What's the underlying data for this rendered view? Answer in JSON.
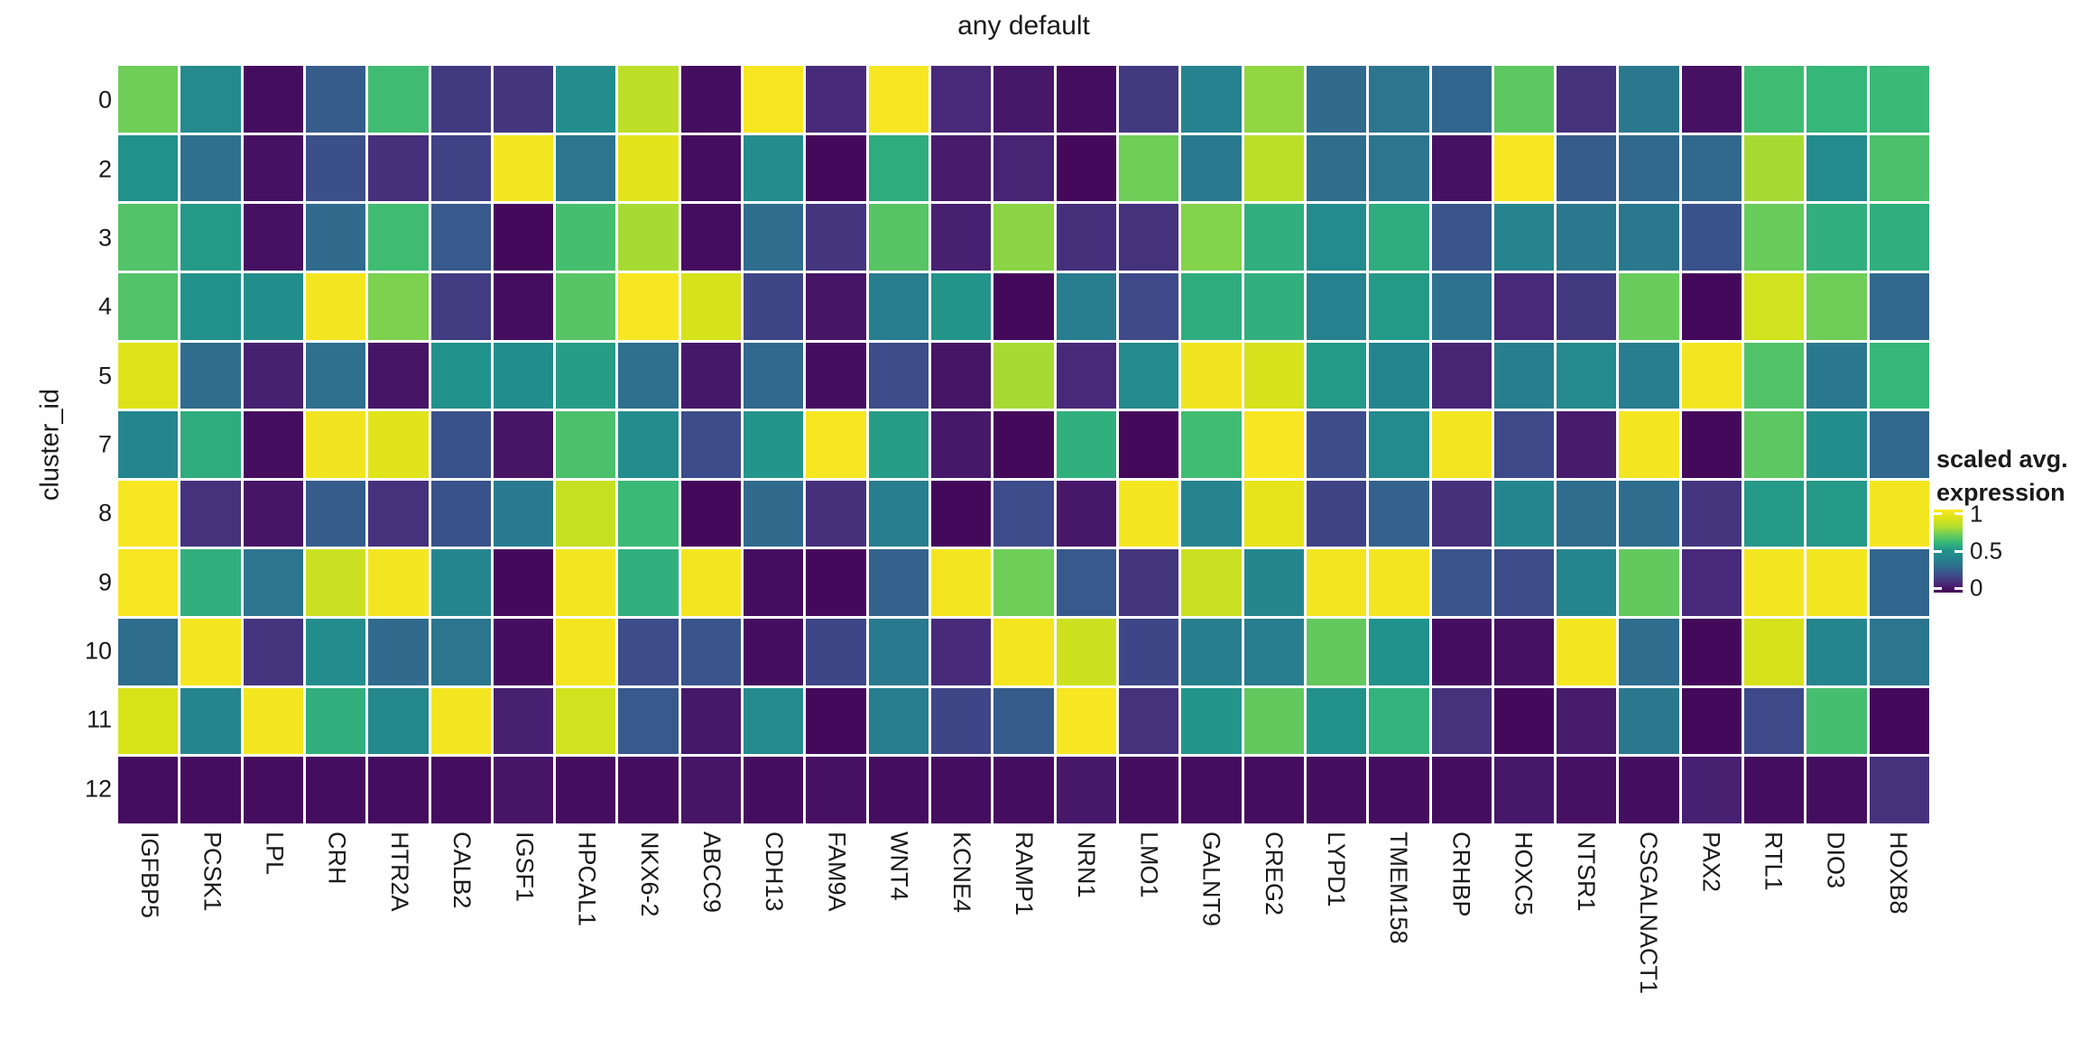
{
  "title": "any default",
  "chart_data": {
    "type": "heatmap",
    "title": "any default",
    "ylabel": "cluster_id",
    "xlabel": "",
    "x_categories": [
      "IGFBP5",
      "PCSK1",
      "LPL",
      "CRH",
      "HTR2A",
      "CALB2",
      "IGSF1",
      "HPCAL1",
      "NKX6-2",
      "ABCC9",
      "CDH13",
      "FAM9A",
      "WNT4",
      "KCNE4",
      "RAMP1",
      "NRN1",
      "LMO1",
      "GALNT9",
      "CREG2",
      "LYPD1",
      "TMEM158",
      "CRHBP",
      "HOXC5",
      "NTSR1",
      "CSGALNACT1",
      "PAX2",
      "RTL1",
      "DIO3",
      "HOXB8"
    ],
    "y_categories": [
      "0",
      "2",
      "3",
      "4",
      "5",
      "7",
      "8",
      "9",
      "10",
      "11",
      "12"
    ],
    "values": [
      [
        0.7,
        0.45,
        0.03,
        0.26,
        0.62,
        0.15,
        0.14,
        0.47,
        0.82,
        0.03,
        0.98,
        0.11,
        0.98,
        0.1,
        0.06,
        0.03,
        0.15,
        0.4,
        0.75,
        0.31,
        0.35,
        0.29,
        0.67,
        0.13,
        0.36,
        0.04,
        0.62,
        0.6,
        0.61
      ],
      [
        0.5,
        0.33,
        0.04,
        0.22,
        0.12,
        0.18,
        0.97,
        0.35,
        0.92,
        0.03,
        0.47,
        0.02,
        0.57,
        0.07,
        0.09,
        0.02,
        0.7,
        0.37,
        0.81,
        0.32,
        0.35,
        0.04,
        0.98,
        0.26,
        0.3,
        0.3,
        0.78,
        0.46,
        0.64
      ],
      [
        0.65,
        0.52,
        0.04,
        0.31,
        0.62,
        0.25,
        0.02,
        0.63,
        0.78,
        0.03,
        0.32,
        0.14,
        0.66,
        0.08,
        0.74,
        0.12,
        0.13,
        0.73,
        0.58,
        0.46,
        0.57,
        0.24,
        0.41,
        0.36,
        0.36,
        0.23,
        0.69,
        0.58,
        0.58
      ],
      [
        0.65,
        0.5,
        0.48,
        0.97,
        0.72,
        0.16,
        0.03,
        0.66,
        0.98,
        0.88,
        0.19,
        0.05,
        0.38,
        0.51,
        0.02,
        0.38,
        0.2,
        0.57,
        0.58,
        0.4,
        0.52,
        0.34,
        0.1,
        0.15,
        0.69,
        0.02,
        0.87,
        0.7,
        0.3
      ],
      [
        0.9,
        0.32,
        0.08,
        0.33,
        0.05,
        0.5,
        0.48,
        0.53,
        0.33,
        0.06,
        0.3,
        0.03,
        0.21,
        0.05,
        0.78,
        0.1,
        0.45,
        0.96,
        0.88,
        0.52,
        0.42,
        0.09,
        0.39,
        0.45,
        0.38,
        0.97,
        0.65,
        0.36,
        0.6
      ],
      [
        0.42,
        0.57,
        0.03,
        0.96,
        0.91,
        0.23,
        0.05,
        0.64,
        0.47,
        0.21,
        0.51,
        0.98,
        0.53,
        0.06,
        0.02,
        0.58,
        0.02,
        0.62,
        0.98,
        0.21,
        0.46,
        0.97,
        0.2,
        0.07,
        0.97,
        0.02,
        0.67,
        0.48,
        0.3
      ],
      [
        0.98,
        0.13,
        0.05,
        0.26,
        0.13,
        0.23,
        0.37,
        0.84,
        0.61,
        0.02,
        0.31,
        0.12,
        0.38,
        0.02,
        0.21,
        0.06,
        0.97,
        0.41,
        0.93,
        0.18,
        0.28,
        0.12,
        0.42,
        0.32,
        0.32,
        0.14,
        0.52,
        0.52,
        0.97
      ],
      [
        0.98,
        0.58,
        0.35,
        0.85,
        0.97,
        0.42,
        0.02,
        0.97,
        0.58,
        0.97,
        0.03,
        0.02,
        0.28,
        0.97,
        0.7,
        0.25,
        0.14,
        0.85,
        0.43,
        0.97,
        0.97,
        0.24,
        0.21,
        0.42,
        0.68,
        0.1,
        0.97,
        0.97,
        0.29
      ],
      [
        0.32,
        0.97,
        0.14,
        0.47,
        0.31,
        0.35,
        0.03,
        0.97,
        0.21,
        0.24,
        0.03,
        0.19,
        0.37,
        0.11,
        0.97,
        0.86,
        0.19,
        0.39,
        0.38,
        0.68,
        0.5,
        0.03,
        0.04,
        0.97,
        0.32,
        0.02,
        0.88,
        0.42,
        0.35
      ],
      [
        0.89,
        0.42,
        0.97,
        0.58,
        0.44,
        0.97,
        0.08,
        0.87,
        0.25,
        0.06,
        0.45,
        0.02,
        0.38,
        0.19,
        0.26,
        0.98,
        0.13,
        0.51,
        0.68,
        0.5,
        0.59,
        0.13,
        0.02,
        0.07,
        0.36,
        0.02,
        0.2,
        0.63,
        0.02
      ],
      [
        0.03,
        0.03,
        0.03,
        0.03,
        0.03,
        0.03,
        0.05,
        0.03,
        0.03,
        0.05,
        0.03,
        0.04,
        0.03,
        0.03,
        0.03,
        0.06,
        0.03,
        0.03,
        0.03,
        0.03,
        0.03,
        0.03,
        0.06,
        0.04,
        0.03,
        0.08,
        0.03,
        0.03,
        0.13
      ]
    ],
    "domain": [
      0,
      1
    ],
    "grid_line_color": "#ffffff",
    "legend": {
      "title_line1": "scaled avg.",
      "title_line2": "expression",
      "tick_labels": [
        "1",
        "0.5",
        "0"
      ],
      "tick_values": [
        1,
        0.5,
        0
      ],
      "position": "right"
    },
    "colormap": {
      "name": "viridis",
      "anchors": [
        "#440154",
        "#482878",
        "#3e4989",
        "#31688e",
        "#26828e",
        "#21918c",
        "#35b779",
        "#6ece58",
        "#b5de2b",
        "#dde318",
        "#fde725"
      ]
    }
  }
}
